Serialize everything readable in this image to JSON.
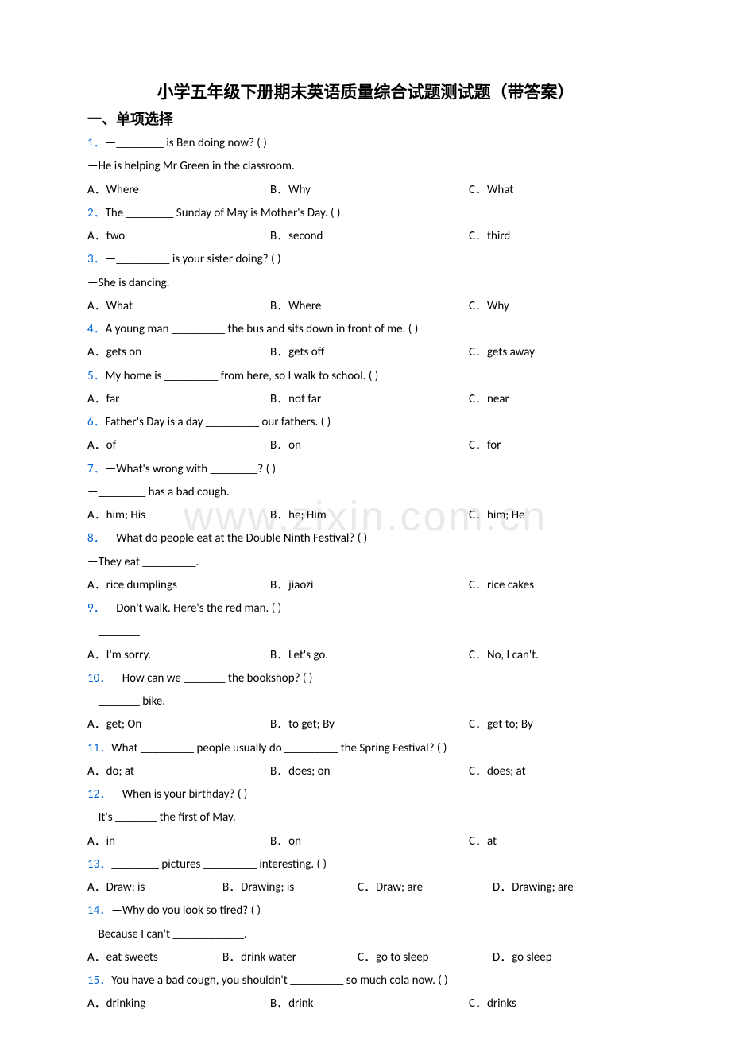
{
  "title": "小学五年级下册期末英语质量综合试题测试题（带答案）",
  "section": "一、单项选择",
  "watermark": "www.zixin.com.cn",
  "questions": [
    {
      "num": "1．",
      "lines": [
        "—________ is Ben doing now? (    )",
        "—He is helping Mr Green in the classroom."
      ],
      "opts": [
        "A．Where",
        "B．Why",
        "C．What"
      ],
      "cols": 3
    },
    {
      "num": "2．",
      "lines": [
        "The ________ Sunday of May is Mother's Day. (    )"
      ],
      "opts": [
        "A．two",
        "B．second",
        "C．third"
      ],
      "cols": 3
    },
    {
      "num": "3．",
      "lines": [
        "—_________ is your sister doing? (     )",
        "—She is dancing."
      ],
      "opts": [
        "A．What",
        "B．Where",
        "C．Why"
      ],
      "cols": 3
    },
    {
      "num": "4．",
      "lines": [
        "A young man _________ the bus and sits down in front of me. (     )"
      ],
      "opts": [
        "A．gets on",
        "B．gets off",
        "C．gets away"
      ],
      "cols": 3
    },
    {
      "num": "5．",
      "lines": [
        "My home is _________ from here, so I walk to school. (     )"
      ],
      "opts": [
        "A．far",
        "B．not far",
        "C．near"
      ],
      "cols": 3
    },
    {
      "num": "6．",
      "lines": [
        "Father's Day is a day _________ our fathers. (     )"
      ],
      "opts": [
        "A．of",
        "B．on",
        "C．for"
      ],
      "cols": 3
    },
    {
      "num": "7．",
      "lines": [
        "—What's wrong with ________? (     )",
        "—________ has a bad cough."
      ],
      "opts": [
        "A．him; His",
        "B．he; Him",
        "C．him; He"
      ],
      "cols": 3
    },
    {
      "num": "8．",
      "lines": [
        "—What do people eat at the Double Ninth Festival? (     )",
        "—They eat _________."
      ],
      "opts": [
        "A．rice dumplings",
        "B．jiaozi",
        "C．rice cakes"
      ],
      "cols": 3
    },
    {
      "num": "9．",
      "lines": [
        "—Don't walk. Here's the red man. (    )",
        "—_______"
      ],
      "opts": [
        "A．I'm sorry.",
        "B．Let's go.",
        "C．No, I can't."
      ],
      "cols": 3
    },
    {
      "num": "10．",
      "lines": [
        "—How can we _______ the bookshop? (    )",
        "—_______ bike."
      ],
      "opts": [
        "A．get; On",
        "B．to get; By",
        "C．get to; By"
      ],
      "cols": 3
    },
    {
      "num": "11．",
      "lines": [
        "What _________ people usually do _________ the Spring Festival? (    )"
      ],
      "opts": [
        "A．do; at",
        "B．does; on",
        "C．does; at"
      ],
      "cols": 3
    },
    {
      "num": "12．",
      "lines": [
        "—When is your birthday? (    )",
        "—It's _______ the first of May."
      ],
      "opts": [
        "A．in",
        "B．on",
        "C．at"
      ],
      "cols": 3
    },
    {
      "num": "13．",
      "lines": [
        "________ pictures _________ interesting. (    )"
      ],
      "opts": [
        "A．Draw; is",
        "B．Drawing; is",
        "C．Draw; are",
        "D．Drawing; are"
      ],
      "cols": 4
    },
    {
      "num": "14．",
      "lines": [
        "—Why do you look so tired? (    )",
        "—Because I can't ____________."
      ],
      "opts": [
        "A．eat sweets",
        "B．drink water",
        "C．go to sleep",
        "D．go sleep"
      ],
      "cols": 4
    },
    {
      "num": "15．",
      "lines": [
        "You have a bad cough, you shouldn't _________ so much cola now. (     )"
      ],
      "opts": [
        "A．drinking",
        "B．drink",
        "C．drinks"
      ],
      "cols": 3
    }
  ]
}
